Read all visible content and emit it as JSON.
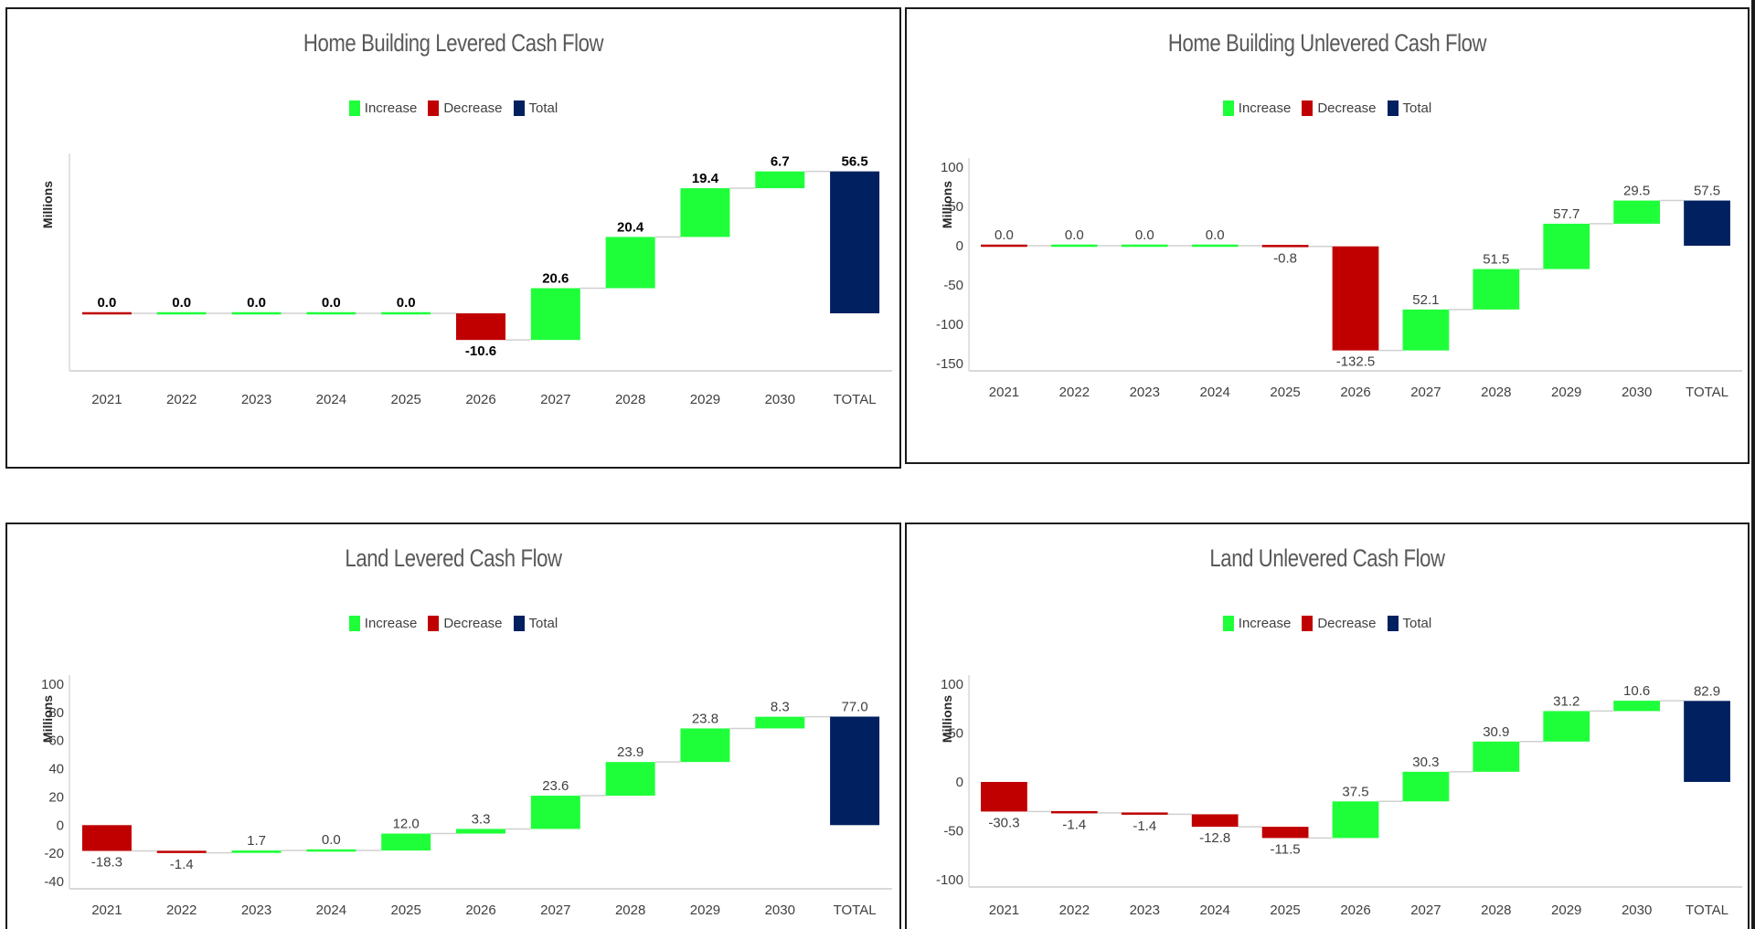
{
  "legend": {
    "increase": "Increase",
    "decrease": "Decrease",
    "total": "Total"
  },
  "colors": {
    "increase": "#1EFF3A",
    "decrease": "#C00000",
    "total": "#002060",
    "grid": "#d9d9d9"
  },
  "chart_data": [
    {
      "type": "waterfall",
      "title": "Home Building Levered Cash Flow",
      "ylabel": "Millions",
      "ylim": [
        -20,
        60
      ],
      "yticks": [],
      "label_style": "bold",
      "legend_position": "top",
      "categories": [
        "2021",
        "2022",
        "2023",
        "2024",
        "2025",
        "2026",
        "2027",
        "2028",
        "2029",
        "2030",
        "TOTAL"
      ],
      "values": [
        0.0,
        0.0,
        0.0,
        0.0,
        0.0,
        -10.6,
        20.6,
        20.4,
        19.4,
        6.7,
        56.5
      ],
      "labels": [
        "0.0",
        "0.0",
        "0.0",
        "0.0",
        "0.0",
        "-10.6",
        "20.6",
        "20.4",
        "19.4",
        "6.7",
        "56.5"
      ],
      "kinds": [
        "decrease",
        "increase",
        "increase",
        "increase",
        "increase",
        "decrease",
        "increase",
        "increase",
        "increase",
        "increase",
        "total"
      ]
    },
    {
      "type": "waterfall",
      "title": "Home Building Unlevered Cash Flow",
      "ylabel": "Millions",
      "ylim": [
        -150,
        100
      ],
      "yticks": [
        "100",
        "50",
        "0",
        "-50",
        "-100",
        "-150"
      ],
      "label_style": "normal",
      "legend_position": "top",
      "categories": [
        "2021",
        "2022",
        "2023",
        "2024",
        "2025",
        "2026",
        "2027",
        "2028",
        "2029",
        "2030",
        "TOTAL"
      ],
      "values": [
        0.0,
        0.0,
        0.0,
        0.0,
        -0.8,
        -132.5,
        52.1,
        51.5,
        57.7,
        29.5,
        57.5
      ],
      "labels": [
        "0.0",
        "0.0",
        "0.0",
        "0.0",
        "-0.8",
        "-132.5",
        "52.1",
        "51.5",
        "57.7",
        "29.5",
        "57.5"
      ],
      "kinds": [
        "decrease",
        "increase",
        "increase",
        "increase",
        "decrease",
        "decrease",
        "increase",
        "increase",
        "increase",
        "increase",
        "total"
      ]
    },
    {
      "type": "waterfall",
      "title": "Land Levered Cash Flow",
      "ylabel": "Millions",
      "ylim": [
        -40,
        100
      ],
      "yticks": [
        "100",
        "80",
        "60",
        "40",
        "20",
        "0",
        "-20",
        "-40"
      ],
      "label_style": "normal",
      "legend_position": "top",
      "categories": [
        "2021",
        "2022",
        "2023",
        "2024",
        "2025",
        "2026",
        "2027",
        "2028",
        "2029",
        "2030",
        "TOTAL"
      ],
      "values": [
        -18.3,
        -1.4,
        1.7,
        0.0,
        12.0,
        3.3,
        23.6,
        23.9,
        23.8,
        8.3,
        77.0
      ],
      "labels": [
        "-18.3",
        "-1.4",
        "1.7",
        "0.0",
        "12.0",
        "3.3",
        "23.6",
        "23.9",
        "23.8",
        "8.3",
        "77.0"
      ],
      "kinds": [
        "decrease",
        "decrease",
        "increase",
        "increase",
        "increase",
        "increase",
        "increase",
        "increase",
        "increase",
        "increase",
        "total"
      ]
    },
    {
      "type": "waterfall",
      "title": "Land Unlevered Cash Flow",
      "ylabel": "Millions",
      "ylim": [
        -100,
        100
      ],
      "yticks": [
        "100",
        "50",
        "0",
        "-50",
        "-100"
      ],
      "label_style": "normal",
      "legend_position": "top",
      "categories": [
        "2021",
        "2022",
        "2023",
        "2024",
        "2025",
        "2026",
        "2027",
        "2028",
        "2029",
        "2030",
        "TOTAL"
      ],
      "values": [
        -30.3,
        -1.4,
        -1.4,
        -12.8,
        -11.5,
        37.5,
        30.3,
        30.9,
        31.2,
        10.6,
        82.9
      ],
      "labels": [
        "-30.3",
        "-1.4",
        "-1.4",
        "-12.8",
        "-11.5",
        "37.5",
        "30.3",
        "30.9",
        "31.2",
        "10.6",
        "82.9"
      ],
      "kinds": [
        "decrease",
        "decrease",
        "decrease",
        "decrease",
        "decrease",
        "increase",
        "increase",
        "increase",
        "increase",
        "increase",
        "total"
      ]
    }
  ]
}
